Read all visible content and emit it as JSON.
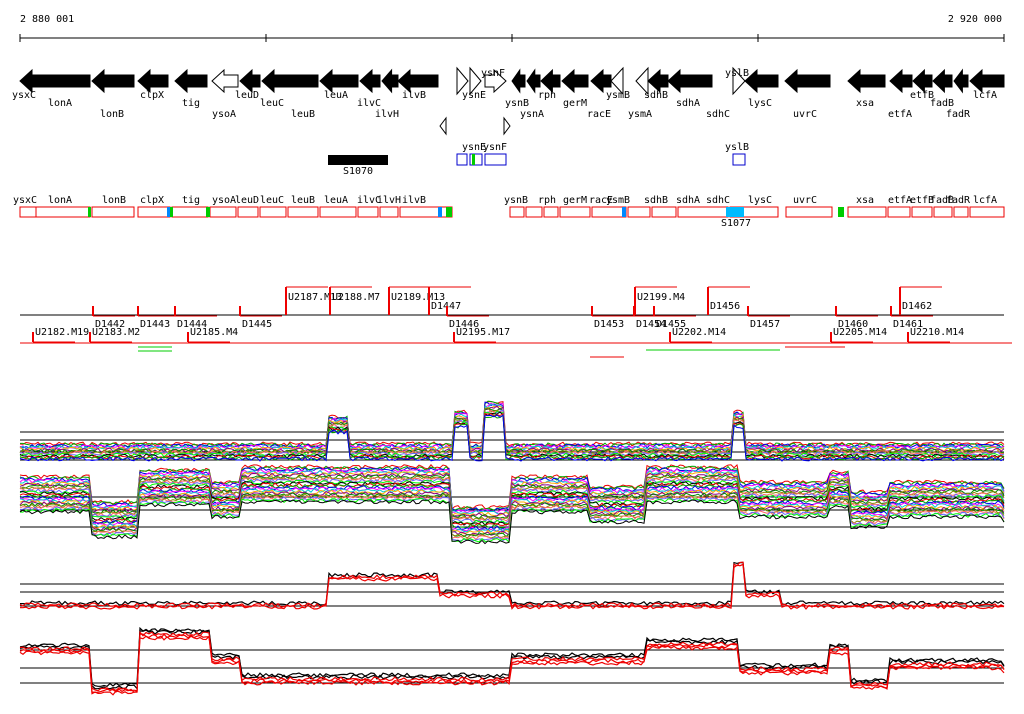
{
  "ruler": {
    "start": "2 880 001",
    "end": "2 920 000"
  },
  "genes": [
    "ysxC",
    "lonA",
    "lonB",
    "clpX",
    "tig",
    "ysoA",
    "leuD",
    "leuC",
    "leuB",
    "leuA",
    "ilvC",
    "ilvH",
    "ilvB",
    "ysnE",
    "ysnF",
    "ysnB",
    "rph",
    "ysnA",
    "gerM",
    "racE",
    "ysmB",
    "sdhB",
    "ysmA",
    "sdhA",
    "sdhC",
    "yslB",
    "lysC",
    "uvrC",
    "xsa",
    "etfA",
    "etfB",
    "fadB",
    "fadR",
    "lcfA"
  ],
  "features": [
    "ysnE",
    "ysnF",
    "yslB",
    "S1070",
    "S1077"
  ],
  "operons": [
    "ysxC",
    "lonA",
    "lonB",
    "clpX",
    "tig",
    "ysoA",
    "leuD",
    "leuC",
    "leuB",
    "leuA",
    "ilvC",
    "ilvH",
    "ilvB",
    "ysnB",
    "rph",
    "gerM",
    "racE",
    "ysmB",
    "sdhB",
    "sdhA",
    "sdhC",
    "lysC",
    "uvrC",
    "xsa",
    "etfA",
    "etfB",
    "fadB",
    "fadR",
    "lcfA"
  ],
  "transcripts": [
    "U2187.M13",
    "U2188.M7",
    "U2189.M13",
    "U2199.M4",
    "D1447",
    "D1456",
    "D1462",
    "D1442",
    "D1443",
    "D1444",
    "D1445",
    "D1446",
    "D1453",
    "D1454",
    "D1455",
    "D1457",
    "D1460",
    "D1461",
    "U2182.M19",
    "U2183.M2",
    "U2185.M4",
    "U2195.M17",
    "U2202.M14",
    "U2205.M14",
    "U2210.M14"
  ]
}
